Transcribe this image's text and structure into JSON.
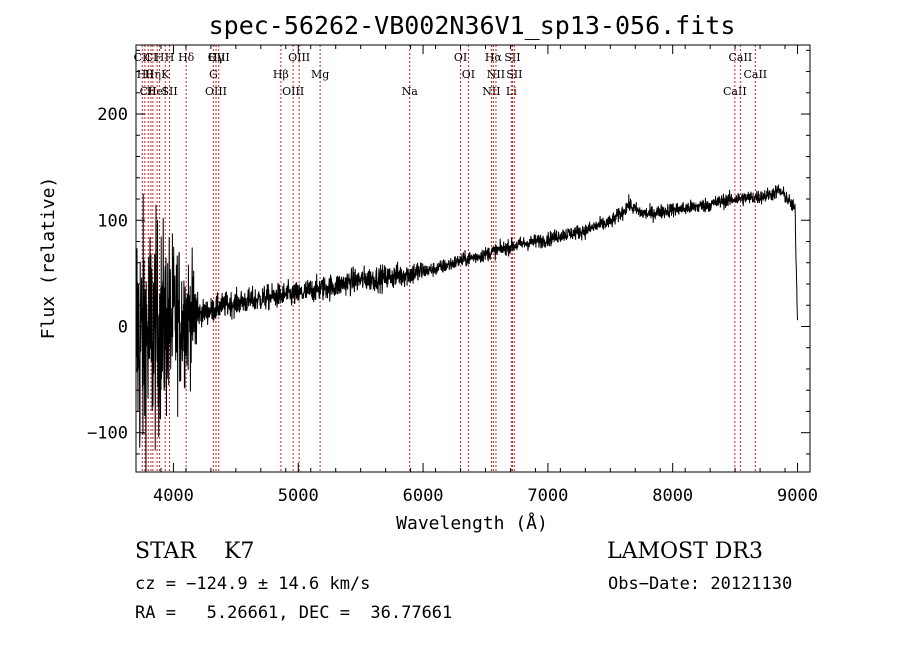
{
  "chart_data": {
    "type": "line",
    "title": "spec-56262-VB002N36V1_sp13-056.fits",
    "xlabel": "Wavelength (Å)",
    "ylabel": "Flux (relative)",
    "xlim": [
      3700,
      9100
    ],
    "ylim": [
      -137,
      265
    ],
    "xticks": [
      4000,
      5000,
      6000,
      7000,
      8000,
      9000
    ],
    "yticks": [
      -100,
      0,
      100,
      200
    ],
    "grid": false,
    "line_color": "#000000",
    "marker_color": "#cc2222",
    "series": [
      {
        "name": "flux",
        "x": [
          3700,
          3750,
          3800,
          3850,
          3900,
          3950,
          4000,
          4050,
          4100,
          4150,
          4200,
          4300,
          4400,
          4500,
          4600,
          4700,
          4800,
          4900,
          5000,
          5100,
          5200,
          5300,
          5400,
          5500,
          5600,
          5700,
          5800,
          5900,
          6000,
          6100,
          6200,
          6300,
          6400,
          6500,
          6600,
          6700,
          6800,
          6900,
          7000,
          7100,
          7200,
          7300,
          7400,
          7500,
          7600,
          7650,
          7700,
          7750,
          7800,
          7900,
          8000,
          8100,
          8200,
          8300,
          8400,
          8500,
          8600,
          8700,
          8800,
          8850,
          8900,
          8950,
          8980,
          9000
        ],
        "y": [
          -5,
          -15,
          -10,
          -5,
          0,
          2,
          5,
          8,
          10,
          10,
          12,
          15,
          20,
          22,
          24,
          26,
          28,
          30,
          30,
          34,
          36,
          38,
          42,
          44,
          45,
          46,
          48,
          50,
          52,
          54,
          58,
          62,
          65,
          68,
          72,
          75,
          78,
          80,
          82,
          86,
          88,
          90,
          95,
          98,
          108,
          115,
          110,
          107,
          106,
          108,
          110,
          111,
          113,
          115,
          118,
          120,
          121,
          122,
          125,
          128,
          123,
          115,
          110,
          2
        ]
      }
    ],
    "line_markers": [
      {
        "x": 3750,
        "labels": [
          "CII"
        ]
      },
      {
        "x": 3771,
        "labels": [
          "Hθ"
        ]
      },
      {
        "x": 3798,
        "labels": [
          "CII"
        ]
      },
      {
        "x": 3820,
        "labels": [
          "CI"
        ]
      },
      {
        "x": 3835,
        "labels": [
          "Hη"
        ]
      },
      {
        "x": 3869,
        "labels": [
          "HeI"
        ]
      },
      {
        "x": 3889,
        "labels": [
          "H"
        ]
      },
      {
        "x": 3934,
        "labels": [
          "K"
        ]
      },
      {
        "x": 3969,
        "labels": [
          "SII",
          "H"
        ]
      },
      {
        "x": 4102,
        "labels": [
          "Hδ"
        ]
      },
      {
        "x": 4320,
        "labels": [
          "G"
        ]
      },
      {
        "x": 4341,
        "labels": [
          "OIII",
          "Hγ"
        ]
      },
      {
        "x": 4363,
        "labels": [
          "OIII"
        ]
      },
      {
        "x": 4861,
        "labels": [
          "Hβ"
        ]
      },
      {
        "x": 4959,
        "labels": [
          "OIII"
        ]
      },
      {
        "x": 5007,
        "labels": [
          "OIII"
        ]
      },
      {
        "x": 5175,
        "labels": [
          "Mg"
        ]
      },
      {
        "x": 5893,
        "labels": [
          "Na"
        ]
      },
      {
        "x": 6300,
        "labels": [
          "OI"
        ]
      },
      {
        "x": 6363,
        "labels": [
          "OI"
        ]
      },
      {
        "x": 6548,
        "labels": [
          "NII"
        ]
      },
      {
        "x": 6563,
        "labels": [
          "Hα"
        ]
      },
      {
        "x": 6584,
        "labels": [
          "NII"
        ]
      },
      {
        "x": 6707,
        "labels": [
          "Li"
        ]
      },
      {
        "x": 6716,
        "labels": [
          "SII"
        ]
      },
      {
        "x": 6731,
        "labels": [
          "SII"
        ]
      },
      {
        "x": 8498,
        "labels": [
          "CaII"
        ]
      },
      {
        "x": 8542,
        "labels": [
          "CaII"
        ]
      },
      {
        "x": 8662,
        "labels": [
          "CaII"
        ]
      }
    ]
  },
  "info": {
    "classification": "STAR    K7",
    "survey": "LAMOST DR3",
    "redshift": "cz = −124.9 ± 14.6 km/s",
    "obs_date": "Obs−Date: 20121130",
    "coords": "RA =   5.26661, DEC =  36.77661"
  }
}
